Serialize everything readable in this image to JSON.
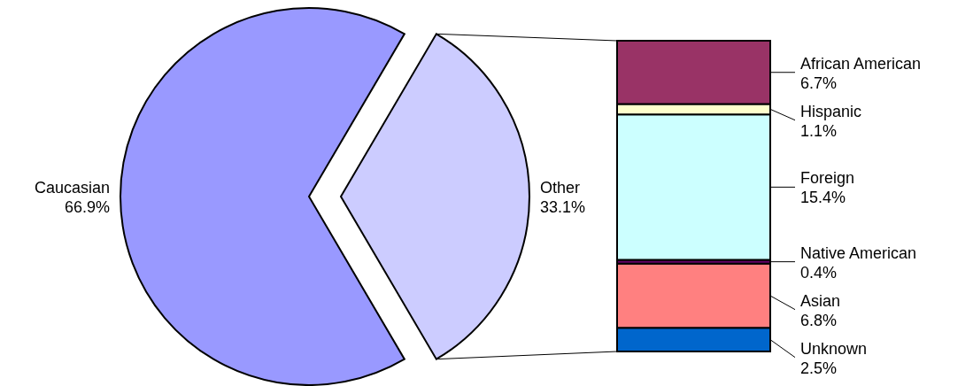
{
  "chart_data": [
    {
      "type": "pie",
      "categories": [
        "Caucasian",
        "Other"
      ],
      "values": [
        66.9,
        33.1
      ],
      "colors": [
        "#9999ff",
        "#ccccff"
      ],
      "value_labels": [
        "66.9%",
        "33.1%"
      ]
    },
    {
      "type": "bar",
      "stacked": true,
      "categories": [
        null
      ],
      "series": [
        {
          "name": "Unknown",
          "color": "#0066cc",
          "values": [
            2.5
          ],
          "value_labels": [
            "2.5%"
          ]
        },
        {
          "name": "Asian",
          "color": "#ff8080",
          "values": [
            6.8
          ],
          "value_labels": [
            "6.8%"
          ]
        },
        {
          "name": "Native American",
          "color": "#660066",
          "values": [
            0.4
          ],
          "value_labels": [
            "0.4%"
          ]
        },
        {
          "name": "Foreign",
          "color": "#ccffff",
          "values": [
            15.4
          ],
          "value_labels": [
            "15.4%"
          ]
        },
        {
          "name": "Hispanic",
          "color": "#ffffcc",
          "values": [
            1.1
          ],
          "value_labels": [
            "1.1%"
          ]
        },
        {
          "name": "African American",
          "color": "#993366",
          "values": [
            6.7
          ],
          "value_labels": [
            "6.7%"
          ]
        }
      ]
    }
  ]
}
